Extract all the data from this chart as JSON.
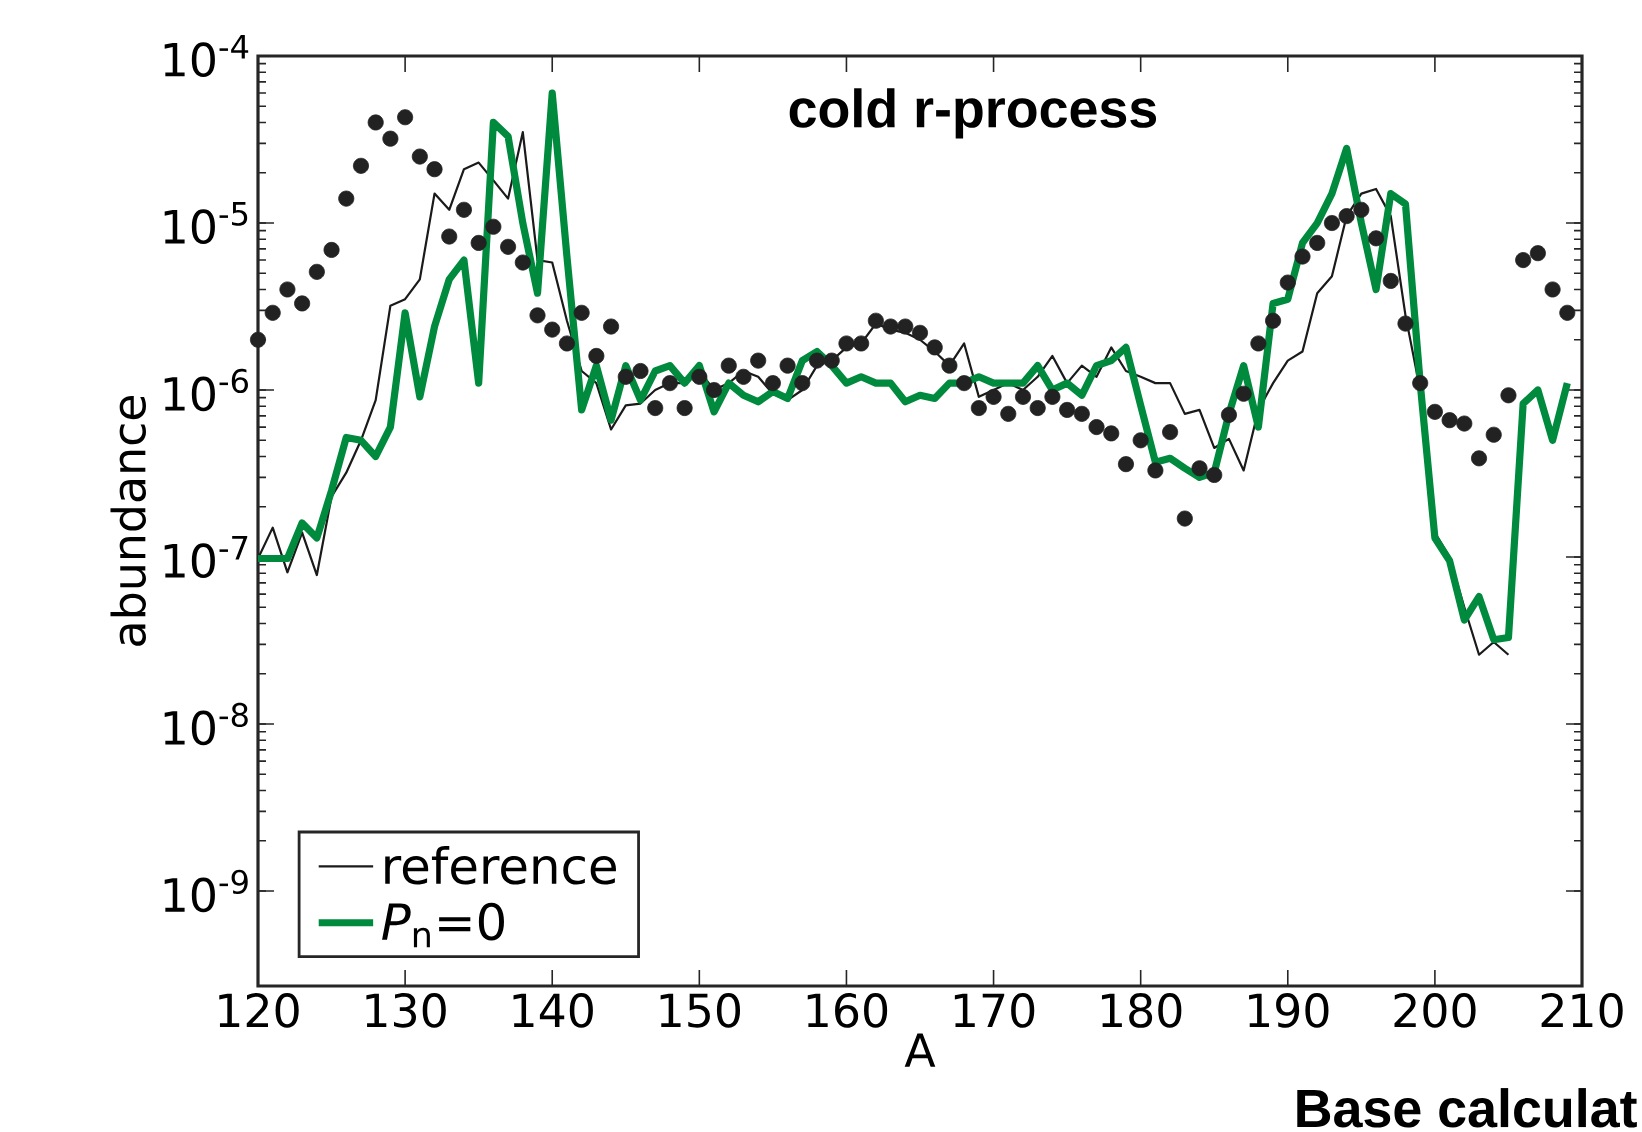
{
  "chart_data": {
    "type": "line",
    "title": "cold r-process",
    "xlabel": "A",
    "ylabel": "abundance",
    "annotations": [
      "Base calculat"
    ],
    "x": [
      120,
      121,
      122,
      123,
      124,
      125,
      126,
      127,
      128,
      129,
      130,
      131,
      132,
      133,
      134,
      135,
      136,
      137,
      138,
      139,
      140,
      141,
      142,
      143,
      144,
      145,
      146,
      147,
      148,
      149,
      150,
      151,
      152,
      153,
      154,
      155,
      156,
      157,
      158,
      159,
      160,
      161,
      162,
      163,
      164,
      165,
      166,
      167,
      168,
      169,
      170,
      171,
      172,
      173,
      174,
      175,
      176,
      177,
      178,
      179,
      180,
      181,
      182,
      183,
      184,
      185,
      186,
      187,
      188,
      189,
      190,
      191,
      192,
      193,
      194,
      195,
      196,
      197,
      198,
      199,
      200,
      201,
      202,
      203,
      204,
      205,
      206,
      207,
      208,
      209
    ],
    "series": [
      {
        "type": "scatter",
        "marker": "circle",
        "color": "#222222",
        "values": [
          2e-06,
          2.9e-06,
          4e-06,
          3.3e-06,
          5.1e-06,
          6.9e-06,
          1.4e-05,
          2.2e-05,
          4e-05,
          3.2e-05,
          4.3e-05,
          2.5e-05,
          2.1e-05,
          8.3e-06,
          1.2e-05,
          7.6e-06,
          9.5e-06,
          7.2e-06,
          5.8e-06,
          2.8e-06,
          2.3e-06,
          1.9e-06,
          2.9e-06,
          1.6e-06,
          2.4e-06,
          1.2e-06,
          1.3e-06,
          7.8e-07,
          1.1e-06,
          7.8e-07,
          1.2e-06,
          1e-06,
          1.4e-06,
          1.2e-06,
          1.5e-06,
          1.1e-06,
          1.4e-06,
          1.1e-06,
          1.5e-06,
          1.5e-06,
          1.9e-06,
          1.9e-06,
          2.6e-06,
          2.4e-06,
          2.4e-06,
          2.2e-06,
          1.8e-06,
          1.4e-06,
          1.1e-06,
          7.8e-07,
          9.1e-07,
          7.2e-07,
          9.1e-07,
          7.8e-07,
          9.1e-07,
          7.6e-07,
          7.2e-07,
          6e-07,
          5.5e-07,
          3.6e-07,
          5e-07,
          3.3e-07,
          5.6e-07,
          1.7e-07,
          3.4e-07,
          3.1e-07,
          7.1e-07,
          9.5e-07,
          1.9e-06,
          2.6e-06,
          4.4e-06,
          6.3e-06,
          7.6e-06,
          1e-05,
          1.1e-05,
          1.2e-05,
          8.1e-06,
          4.5e-06,
          2.5e-06,
          1.1e-06,
          7.4e-07,
          6.6e-07,
          6.3e-07,
          3.9e-07,
          5.4e-07,
          9.3e-07,
          6e-06,
          6.6e-06,
          4e-06,
          2.9e-06
        ]
      },
      {
        "name": "reference",
        "color": "#1a1a1a",
        "values": [
          9.8e-08,
          1.5e-07,
          8.1e-08,
          1.4e-07,
          7.8e-08,
          2.3e-07,
          3.2e-07,
          5e-07,
          8.7e-07,
          3.2e-06,
          3.5e-06,
          4.6e-06,
          1.5e-05,
          1.2e-05,
          2.1e-05,
          2.3e-05,
          1.8e-05,
          1.4e-05,
          3.5e-05,
          6e-06,
          5.8e-06,
          2.6e-06,
          1.3e-06,
          1.1e-06,
          5.8e-07,
          8.1e-07,
          8.3e-07,
          1e-06,
          1.1e-06,
          1.1e-06,
          1.3e-06,
          1e-06,
          1.1e-06,
          1.3e-06,
          1.2e-06,
          9.5e-07,
          8.7e-07,
          1e-06,
          1.4e-06,
          1.5e-06,
          1.8e-06,
          1.9e-06,
          2.5e-06,
          2.3e-06,
          2.2e-06,
          2e-06,
          1.7e-06,
          1.4e-06,
          1.9e-06,
          9.1e-07,
          1e-06,
          1.1e-06,
          1e-06,
          1.2e-06,
          1.6e-06,
          1.1e-06,
          1.4e-06,
          1.2e-06,
          1.8e-06,
          1.3e-06,
          1.2e-06,
          1.1e-06,
          1.1e-06,
          7.2e-07,
          7.6e-07,
          4.5e-07,
          5.1e-07,
          3.3e-07,
          7.6e-07,
          1.1e-06,
          1.5e-06,
          1.7e-06,
          3.8e-06,
          4.8e-06,
          1.1e-05,
          1.5e-05,
          1.6e-05,
          1.1e-05,
          2.8e-06,
          1e-06,
          1.4e-07,
          1e-07,
          5e-08,
          2.6e-08,
          3.1e-08,
          2.6e-08,
          null,
          null,
          null,
          null
        ]
      },
      {
        "name": "*P*$_{n}$=0",
        "color": "#008a3e",
        "values": [
          9.8e-08,
          9.8e-08,
          9.8e-08,
          1.6e-07,
          1.3e-07,
          2.5e-07,
          5.2e-07,
          5e-07,
          4e-07,
          6e-07,
          2.9e-06,
          9.1e-07,
          2.4e-06,
          4.6e-06,
          6e-06,
          1.1e-06,
          4e-05,
          3.3e-05,
          1e-05,
          3.8e-06,
          6e-05,
          6.3e-06,
          7.6e-07,
          1.4e-06,
          6.6e-07,
          1.4e-06,
          8.7e-07,
          1.3e-06,
          1.4e-06,
          1.1e-06,
          1.4e-06,
          7.4e-07,
          1.1e-06,
          9.3e-07,
          8.5e-07,
          9.8e-07,
          8.9e-07,
          1.5e-06,
          1.7e-06,
          1.4e-06,
          1.1e-06,
          1.2e-06,
          1.1e-06,
          1.1e-06,
          8.5e-07,
          9.3e-07,
          8.9e-07,
          1.1e-06,
          1.1e-06,
          1.2e-06,
          1.1e-06,
          1.1e-06,
          1.1e-06,
          1.4e-06,
          1e-06,
          1.1e-06,
          9.3e-07,
          1.4e-06,
          1.5e-06,
          1.8e-06,
          8.1e-07,
          3.7e-07,
          3.9e-07,
          3.4e-07,
          3e-07,
          3.2e-07,
          7.2e-07,
          1.4e-06,
          6e-07,
          3.3e-06,
          3.5e-06,
          7.6e-06,
          1e-05,
          1.5e-05,
          2.8e-05,
          1e-05,
          4e-06,
          1.5e-05,
          1.3e-05,
          1.1e-06,
          1.3e-07,
          9.5e-08,
          4.2e-08,
          5.8e-08,
          3.2e-08,
          3.3e-08,
          8.3e-07,
          1e-06,
          5e-07,
          1.1e-06
        ]
      }
    ],
    "xlim": [
      120,
      210
    ],
    "ylim": [
      2.7e-10,
      0.0001
    ],
    "log": "y",
    "xticks": [
      120,
      130,
      140,
      150,
      160,
      170,
      180,
      190,
      200,
      210
    ],
    "yticks": [
      {
        "value": 1e-09,
        "label": "10$^{-9}$"
      },
      {
        "value": 1e-08,
        "label": "10$^{-8}$"
      },
      {
        "value": 1e-07,
        "label": "10$^{-7}$"
      },
      {
        "value": 1e-06,
        "label": "10$^{-6}$"
      },
      {
        "value": 1e-05,
        "label": "10$^{-5}$"
      },
      {
        "value": 0.0001,
        "label": "10$^{-4}$"
      }
    ],
    "legend": "bottom left"
  }
}
